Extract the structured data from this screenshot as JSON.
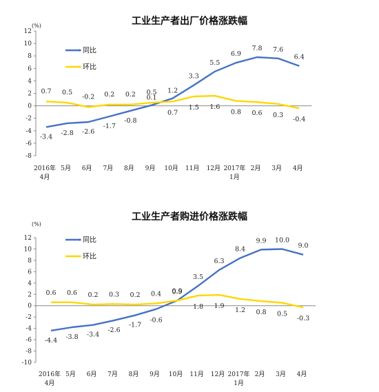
{
  "chart_data": [
    {
      "type": "line",
      "title": "工业生产者出厂价格涨跌幅",
      "unit": "(%)",
      "categories": [
        "2016年\n4月",
        "5月",
        "6月",
        "7月",
        "8月",
        "9月",
        "10月",
        "11月",
        "12月",
        "2017年\n1月",
        "2月",
        "3月",
        "4月"
      ],
      "ylim": [
        -8,
        12
      ],
      "yticks": [
        -8,
        -6,
        -4,
        -2,
        0,
        2,
        4,
        6,
        8,
        10,
        12
      ],
      "legend_position": "top-left",
      "grid": false,
      "series": [
        {
          "name": "同比",
          "color": "#4472C4",
          "values": [
            -3.4,
            -2.8,
            -2.6,
            -1.7,
            -0.8,
            0.1,
            1.2,
            3.3,
            5.5,
            6.9,
            7.8,
            7.6,
            6.4
          ],
          "labels": [
            "-3.4",
            "-2.8",
            "-2.6",
            "-1.7",
            "-0.8",
            "0.1",
            "1.2",
            "3.3",
            "5.5",
            "6.9",
            "7.8",
            "7.6",
            "6.4"
          ]
        },
        {
          "name": "环比",
          "color": "#FFD700",
          "values": [
            0.7,
            0.5,
            -0.2,
            0.2,
            0.2,
            0.5,
            0.7,
            1.5,
            1.6,
            0.8,
            0.6,
            0.3,
            -0.4
          ],
          "labels": [
            "0.7",
            "0.5",
            "-0.2",
            "0.2",
            "0.2",
            "0.5",
            "0.7",
            "1.5",
            "1.6",
            "0.8",
            "0.6",
            "0.3",
            "-0.4"
          ]
        }
      ]
    },
    {
      "type": "line",
      "title": "工业生产者购进价格涨跌幅",
      "unit": "(%)",
      "categories": [
        "2016年\n4月",
        "5月",
        "6月",
        "7月",
        "8月",
        "9月",
        "10月",
        "11月",
        "12月",
        "2017年\n1月",
        "2月",
        "3月",
        "4月"
      ],
      "ylim": [
        -10,
        12
      ],
      "yticks": [
        -10,
        -8,
        -6,
        -4,
        -2,
        0,
        2,
        4,
        6,
        8,
        10,
        12
      ],
      "legend_position": "top-left",
      "grid": false,
      "series": [
        {
          "name": "同比",
          "color": "#4472C4",
          "values": [
            -4.4,
            -3.8,
            -3.4,
            -2.6,
            -1.7,
            -0.6,
            0.9,
            3.5,
            6.3,
            8.4,
            9.9,
            10.0,
            9.0
          ],
          "labels": [
            "-4.4",
            "-3.8",
            "-3.4",
            "-2.6",
            "-1.7",
            "-0.6",
            "0.9",
            "3.5",
            "6.3",
            "8.4",
            "9.9",
            "10.0",
            "9.0"
          ]
        },
        {
          "name": "环比",
          "color": "#FFD700",
          "values": [
            0.6,
            0.6,
            0.2,
            0.3,
            0.2,
            0.4,
            0.9,
            1.8,
            1.9,
            1.2,
            0.8,
            0.5,
            -0.3
          ],
          "labels": [
            "0.6",
            "0.6",
            "0.2",
            "0.3",
            "0.2",
            "0.4",
            "0.9",
            "1.8",
            "1.9",
            "1.2",
            "0.8",
            "0.5",
            "-0.3"
          ]
        }
      ]
    }
  ]
}
